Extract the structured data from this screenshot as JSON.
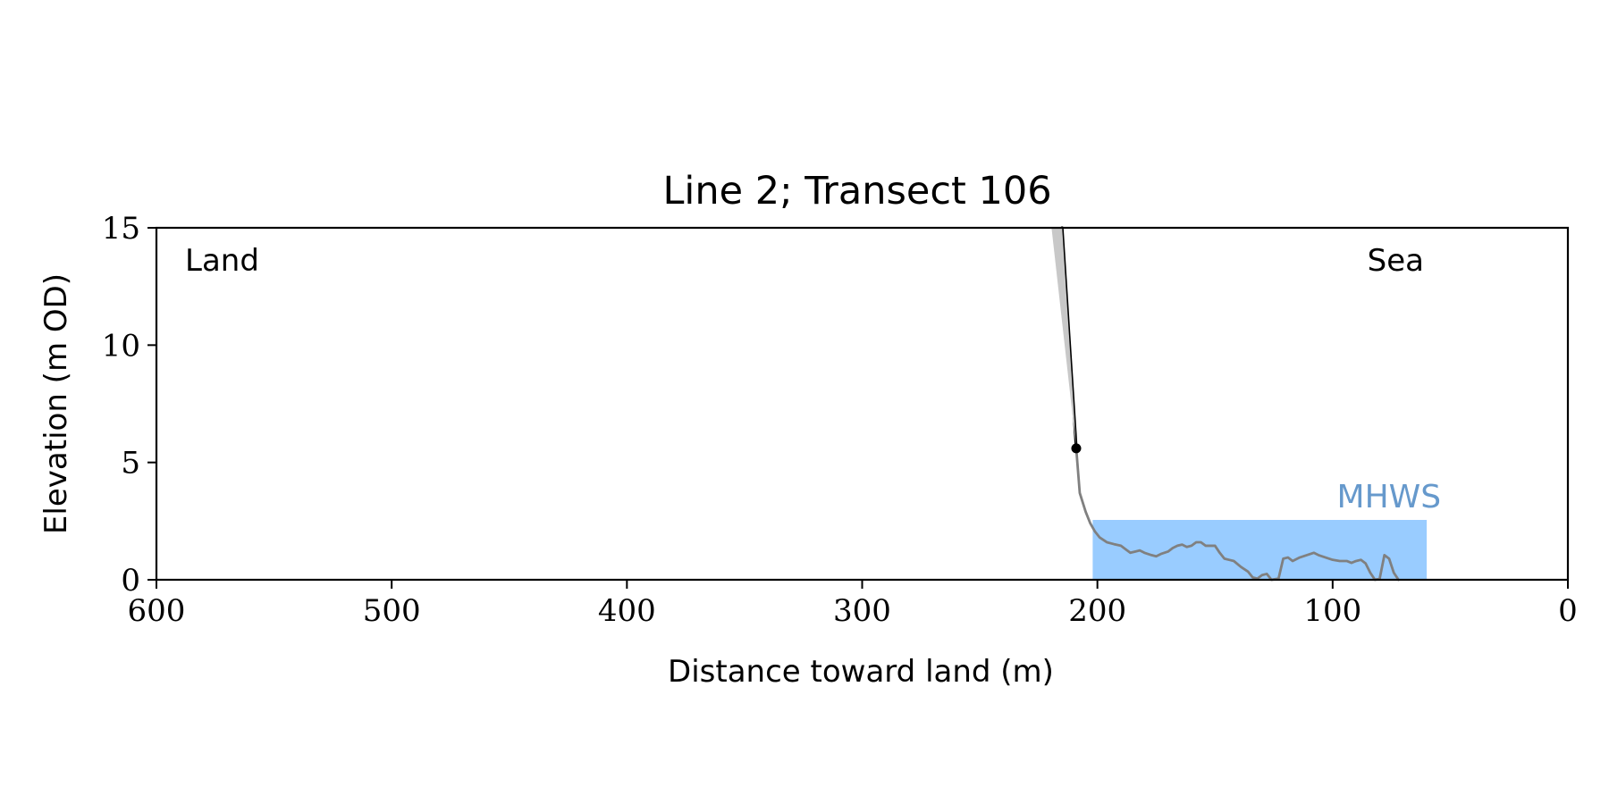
{
  "chart_data": {
    "type": "line",
    "title": "Line 2; Transect 106",
    "xlabel": "Distance toward land (m)",
    "ylabel": "Elevation (m OD)",
    "xlim": [
      600,
      0
    ],
    "ylim": [
      0,
      15
    ],
    "x_reversed": true,
    "x_ticks": [
      600,
      500,
      400,
      300,
      200,
      100,
      0
    ],
    "y_ticks": [
      0,
      5,
      10,
      15
    ],
    "grid": false,
    "annotations": {
      "land_label": "Land",
      "sea_label": "Sea"
    },
    "mhws": {
      "label": "MHWS",
      "level": 2.55,
      "x_from": 202,
      "x_to": 60,
      "fill_color": "#99ccff",
      "label_color": "#6699cc"
    },
    "series": [
      {
        "role": "cliff-profile",
        "color": "#000000",
        "points": [
          [
            215,
            15.0
          ],
          [
            209,
            5.6
          ]
        ]
      },
      {
        "role": "cliff-uncertainty",
        "color": "#c8c8c8",
        "polygon": [
          [
            219.5,
            15.0
          ],
          [
            215,
            15.0
          ],
          [
            209,
            5.6
          ]
        ]
      },
      {
        "role": "ground-profile",
        "color": "#808080",
        "points": [
          [
            209,
            5.6
          ],
          [
            207.5,
            3.7
          ],
          [
            205,
            2.9
          ],
          [
            203,
            2.4
          ],
          [
            201,
            2.05
          ],
          [
            199,
            1.8
          ],
          [
            196,
            1.6
          ],
          [
            193,
            1.52
          ],
          [
            190,
            1.45
          ],
          [
            188,
            1.3
          ],
          [
            186,
            1.15
          ],
          [
            184,
            1.2
          ],
          [
            182,
            1.25
          ],
          [
            180,
            1.15
          ],
          [
            177,
            1.05
          ],
          [
            175,
            1.0
          ],
          [
            173,
            1.1
          ],
          [
            170,
            1.2
          ],
          [
            168,
            1.35
          ],
          [
            166,
            1.45
          ],
          [
            164,
            1.5
          ],
          [
            162,
            1.4
          ],
          [
            160,
            1.45
          ],
          [
            158,
            1.6
          ],
          [
            156,
            1.6
          ],
          [
            154,
            1.45
          ],
          [
            150,
            1.45
          ],
          [
            148,
            1.15
          ],
          [
            146,
            0.9
          ],
          [
            144,
            0.85
          ],
          [
            142,
            0.8
          ],
          [
            139,
            0.55
          ],
          [
            136,
            0.35
          ],
          [
            134,
            0.1
          ],
          [
            132,
            0.05
          ],
          [
            130,
            0.2
          ],
          [
            128,
            0.25
          ],
          [
            126,
            0.0
          ],
          [
            123,
            0.05
          ],
          [
            121,
            0.9
          ],
          [
            119,
            0.95
          ],
          [
            117,
            0.8
          ],
          [
            114,
            0.95
          ],
          [
            111,
            1.05
          ],
          [
            108,
            1.15
          ],
          [
            106,
            1.05
          ],
          [
            103,
            0.95
          ],
          [
            100,
            0.85
          ],
          [
            97,
            0.8
          ],
          [
            94,
            0.8
          ],
          [
            92,
            0.72
          ],
          [
            90,
            0.8
          ],
          [
            88,
            0.85
          ],
          [
            86,
            0.7
          ],
          [
            84,
            0.3
          ],
          [
            82,
            0.0
          ],
          [
            80,
            0.05
          ],
          [
            78,
            1.05
          ],
          [
            76,
            0.9
          ],
          [
            74,
            0.3
          ],
          [
            72,
            0.0
          ]
        ]
      }
    ],
    "cliff_top_marker": {
      "x": 209,
      "y": 5.6,
      "color": "#000000"
    }
  }
}
